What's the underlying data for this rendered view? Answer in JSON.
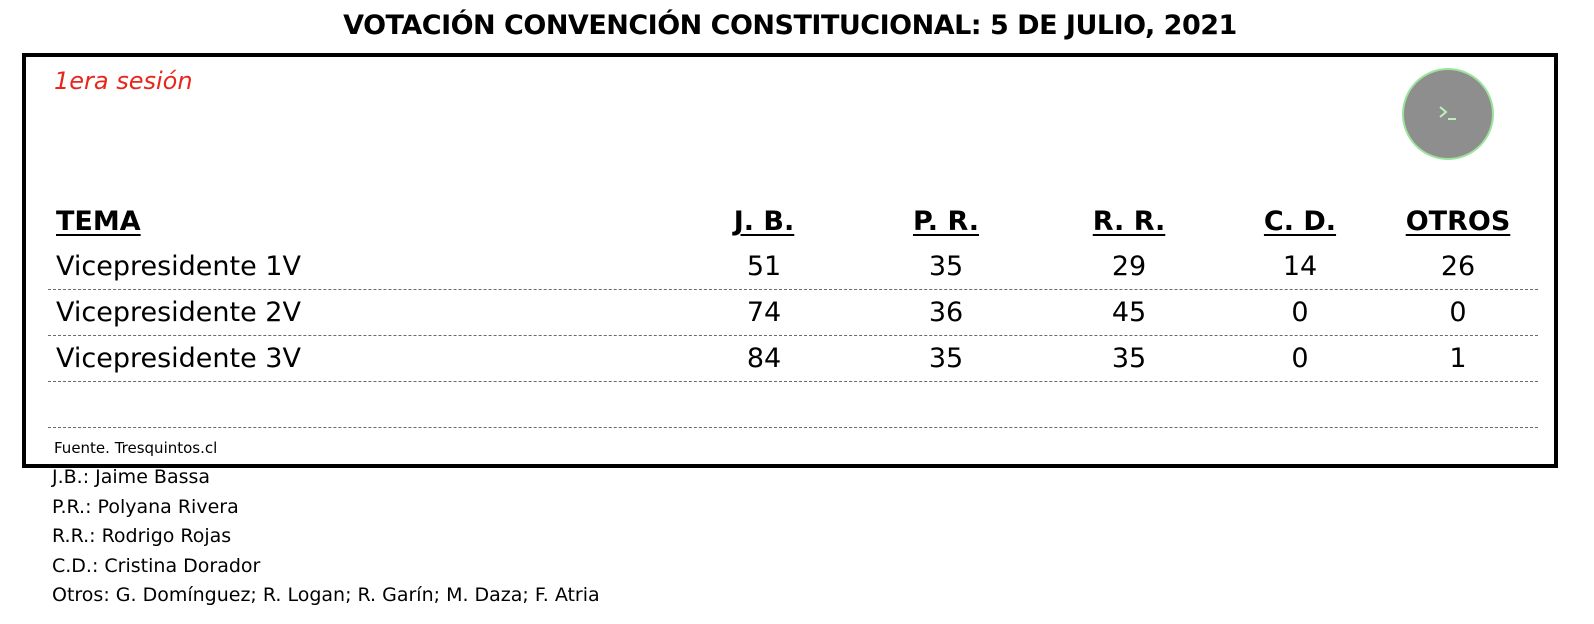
{
  "title": "VOTACIÓN CONVENCIÓN CONSTITUCIONAL: 5 DE JULIO, 2021",
  "session_label": "1era sesión",
  "terminal_button": {
    "icon": "terminal-icon",
    "ring_color": "#9be39b",
    "fill_color": "#8e8e8e"
  },
  "colors": {
    "session": "#e8261c"
  },
  "table": {
    "headers": [
      "TEMA",
      "J. B.",
      "P. R.",
      "R. R.",
      "C. D.",
      "OTROS"
    ],
    "rows": [
      {
        "tema": "Vicepresidente 1V",
        "values": [
          "51",
          "35",
          "29",
          "14",
          "26"
        ]
      },
      {
        "tema": "Vicepresidente 2V",
        "values": [
          "74",
          "36",
          "45",
          "0",
          "0"
        ]
      },
      {
        "tema": "Vicepresidente 3V",
        "values": [
          "84",
          "35",
          "35",
          "0",
          "1"
        ]
      }
    ]
  },
  "source": "Fuente. Tresquintos.cl",
  "legend": [
    "J.B.: Jaime Bassa",
    "P.R.: Polyana Rivera",
    "R.R.: Rodrigo Rojas",
    "C.D.: Cristina Dorador",
    "Otros: G. Domínguez; R. Logan; R. Garín; M. Daza; F. Atria"
  ]
}
